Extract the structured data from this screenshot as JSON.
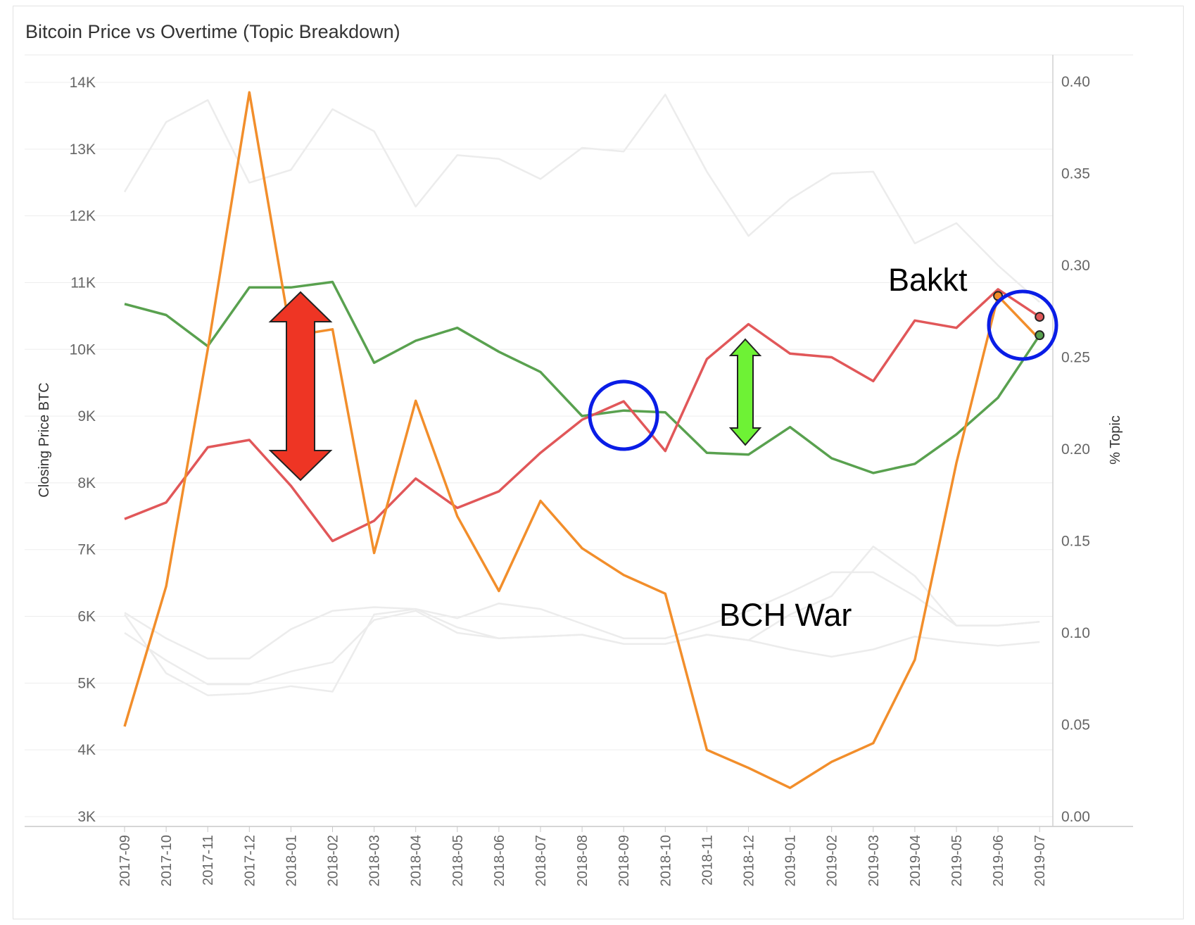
{
  "chart_data": {
    "type": "line",
    "title": "Bitcoin Price vs Overtime (Topic Breakdown)",
    "ylabel_left": "Closing Price BTC",
    "ylabel_right": "% Topic",
    "ylim_left": [
      3000,
      14300
    ],
    "ylim_right": [
      0.0,
      0.41
    ],
    "left_ticks": [
      3000,
      4000,
      5000,
      6000,
      7000,
      8000,
      9000,
      10000,
      11000,
      12000,
      13000,
      14000
    ],
    "left_tick_labels": [
      "3K",
      "4K",
      "5K",
      "6K",
      "7K",
      "8K",
      "9K",
      "10K",
      "11K",
      "12K",
      "13K",
      "14K"
    ],
    "right_ticks": [
      0.0,
      0.05,
      0.1,
      0.15,
      0.2,
      0.25,
      0.3,
      0.35,
      0.4
    ],
    "right_tick_labels": [
      "0.00",
      "0.05",
      "0.10",
      "0.15",
      "0.20",
      "0.25",
      "0.30",
      "0.35",
      "0.40"
    ],
    "categories": [
      "2017-09",
      "2017-10",
      "2017-11",
      "2017-12",
      "2018-01",
      "2018-02",
      "2018-03",
      "2018-04",
      "2018-05",
      "2018-06",
      "2018-07",
      "2018-08",
      "2018-09",
      "2018-10",
      "2018-11",
      "2018-12",
      "2019-01",
      "2019-02",
      "2019-03",
      "2019-04",
      "2019-05",
      "2019-06",
      "2019-07"
    ],
    "grid": true,
    "series": [
      {
        "axis": "left",
        "color": "#f28e2b",
        "values": [
          4350,
          6450,
          10000,
          13850,
          10200,
          10300,
          6950,
          9230,
          7500,
          6380,
          7730,
          7020,
          6620,
          6340,
          4000,
          3730,
          3430,
          3820,
          4100,
          5350,
          8300,
          10800,
          10150
        ]
      },
      {
        "axis": "right",
        "color": "#59a14f",
        "values": [
          0.279,
          0.273,
          0.256,
          0.288,
          0.288,
          0.291,
          0.247,
          0.259,
          0.266,
          0.253,
          0.242,
          0.218,
          0.221,
          0.22,
          0.198,
          0.197,
          0.212,
          0.195,
          0.187,
          0.192,
          0.208,
          0.228,
          0.262
        ]
      },
      {
        "axis": "right",
        "color": "#e15759",
        "values": [
          0.162,
          0.171,
          0.201,
          0.205,
          0.18,
          0.15,
          0.161,
          0.184,
          0.168,
          0.177,
          0.198,
          0.216,
          0.226,
          0.199,
          0.249,
          0.268,
          0.252,
          0.25,
          0.237,
          0.27,
          0.266,
          0.287,
          0.272
        ]
      },
      {
        "axis": "right",
        "color": "#ececec",
        "values": [
          0.34,
          0.378,
          0.39,
          0.345,
          0.352,
          0.385,
          0.373,
          0.332,
          0.36,
          0.358,
          0.347,
          0.364,
          0.362,
          0.393,
          0.351,
          0.316,
          0.336,
          0.35,
          0.351,
          0.312,
          0.323,
          0.3,
          0.28
        ]
      },
      {
        "axis": "right",
        "color": "#ececec",
        "values": [
          0.111,
          0.097,
          0.086,
          0.086,
          0.102,
          0.112,
          0.114,
          0.113,
          0.108,
          0.116,
          0.113,
          0.105,
          0.097,
          0.097,
          0.104,
          0.112,
          0.122,
          0.133,
          0.133,
          0.12,
          0.104,
          0.104,
          0.106
        ]
      },
      {
        "axis": "right",
        "color": "#ececec",
        "values": [
          0.1,
          0.085,
          0.072,
          0.072,
          0.079,
          0.084,
          0.107,
          0.112,
          0.1,
          0.097,
          0.098,
          0.099,
          0.094,
          0.094,
          0.099,
          0.096,
          0.091,
          0.087,
          0.091,
          0.098,
          0.095,
          0.093,
          0.095
        ]
      },
      {
        "axis": "right",
        "color": "#ececec",
        "values": [
          0.11,
          0.078,
          0.066,
          0.067,
          0.071,
          0.068,
          0.11,
          0.113,
          0.103,
          0.097,
          0.098,
          0.099,
          0.094,
          0.094,
          0.099,
          0.096,
          0.11,
          0.12,
          0.147,
          0.131,
          0.104,
          0.104,
          0.106
        ]
      }
    ],
    "annotations": [
      "Bakkt",
      "BCH War"
    ]
  }
}
